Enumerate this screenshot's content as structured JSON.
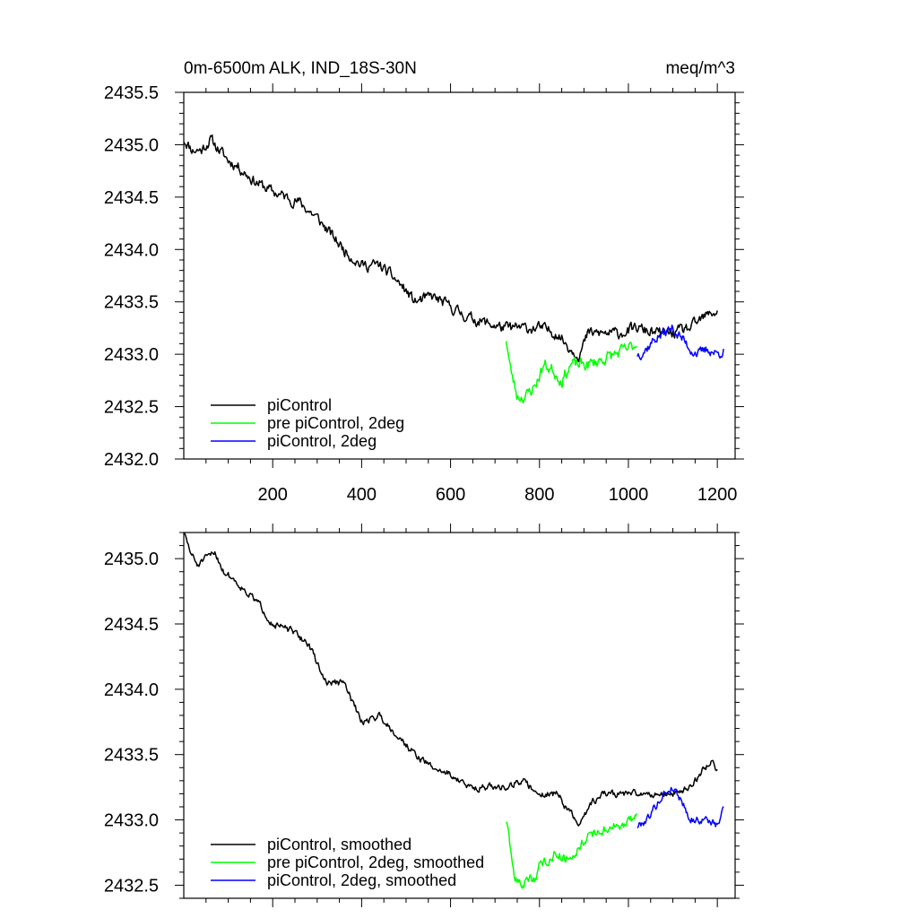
{
  "chart_data": [
    {
      "type": "line",
      "title": "0m-6500m ALK, IND_18S-30N",
      "units": "meq/m^3",
      "xlim": [
        0,
        1240
      ],
      "ylim": [
        2432.0,
        2435.5
      ],
      "x_ticks": [
        200,
        400,
        600,
        800,
        1000,
        1200
      ],
      "x_ticks_labeled": true,
      "y_ticks": [
        2432.0,
        2432.5,
        2433.0,
        2433.5,
        2434.0,
        2434.5,
        2435.0,
        2435.5
      ],
      "y_tick_labels": [
        "2432.0",
        "2432.5",
        "2433.0",
        "2433.5",
        "2434.0",
        "2434.5",
        "2435.0",
        "2435.5"
      ],
      "legend_position": "bottom-left",
      "series": [
        {
          "name": "piControl",
          "color": "#000000",
          "noise": 0.07,
          "seed": 11,
          "x": [
            0,
            20,
            40,
            60,
            80,
            100,
            120,
            160,
            200,
            260,
            300,
            360,
            400,
            440,
            480,
            520,
            560,
            600,
            640,
            680,
            720,
            760,
            800,
            840,
            870,
            890,
            910,
            940,
            980,
            1020,
            1060,
            1100,
            1140,
            1170,
            1190,
            1200
          ],
          "y": [
            2435.05,
            2434.95,
            2434.95,
            2435.05,
            2434.95,
            2434.85,
            2434.8,
            2434.65,
            2434.55,
            2434.45,
            2434.3,
            2434.0,
            2433.85,
            2433.85,
            2433.7,
            2433.5,
            2433.55,
            2433.45,
            2433.35,
            2433.3,
            2433.25,
            2433.25,
            2433.25,
            2433.2,
            2433.05,
            2433.0,
            2433.2,
            2433.2,
            2433.2,
            2433.25,
            2433.2,
            2433.2,
            2433.25,
            2433.35,
            2433.4,
            2433.4
          ]
        },
        {
          "name": "pre piControl, 2deg",
          "color": "#00ff00",
          "noise": 0.08,
          "seed": 23,
          "x": [
            725,
            735,
            750,
            770,
            790,
            810,
            830,
            850,
            870,
            890,
            910,
            940,
            970,
            1000,
            1020
          ],
          "y": [
            2433.15,
            2432.85,
            2432.6,
            2432.6,
            2432.7,
            2432.9,
            2432.85,
            2432.75,
            2432.9,
            2432.9,
            2432.9,
            2432.95,
            2433.0,
            2433.05,
            2433.1
          ]
        },
        {
          "name": "piControl, 2deg",
          "color": "#0000ff",
          "noise": 0.07,
          "seed": 37,
          "x": [
            1020,
            1040,
            1060,
            1080,
            1100,
            1120,
            1140,
            1160,
            1180,
            1200,
            1215
          ],
          "y": [
            2433.0,
            2433.05,
            2433.15,
            2433.2,
            2433.25,
            2433.15,
            2433.05,
            2433.0,
            2433.05,
            2433.0,
            2433.05
          ]
        }
      ]
    },
    {
      "type": "line",
      "title": "",
      "units": "",
      "xlim": [
        0,
        1240
      ],
      "ylim": [
        2432.4,
        2435.2
      ],
      "x_ticks": [
        200,
        400,
        600,
        800,
        1000,
        1200
      ],
      "x_ticks_labeled": false,
      "y_ticks": [
        2432.5,
        2433.0,
        2433.5,
        2434.0,
        2434.5,
        2435.0
      ],
      "y_tick_labels": [
        "2432.5",
        "2433.0",
        "2433.5",
        "2434.0",
        "2434.5",
        "2435.0"
      ],
      "legend_position": "bottom-left",
      "series": [
        {
          "name": "piControl, smoothed",
          "color": "#000000",
          "noise": 0.035,
          "seed": 51,
          "x": [
            0,
            15,
            30,
            50,
            70,
            90,
            110,
            140,
            170,
            200,
            240,
            280,
            320,
            360,
            400,
            440,
            480,
            520,
            560,
            600,
            640,
            680,
            720,
            760,
            800,
            840,
            870,
            890,
            910,
            940,
            980,
            1020,
            1060,
            1100,
            1140,
            1170,
            1190,
            1200
          ],
          "y": [
            2435.2,
            2435.05,
            2434.95,
            2435.0,
            2435.05,
            2434.9,
            2434.85,
            2434.75,
            2434.65,
            2434.5,
            2434.45,
            2434.35,
            2434.05,
            2434.05,
            2433.75,
            2433.8,
            2433.65,
            2433.5,
            2433.4,
            2433.35,
            2433.25,
            2433.25,
            2433.25,
            2433.3,
            2433.2,
            2433.2,
            2433.05,
            2432.95,
            2433.1,
            2433.2,
            2433.2,
            2433.2,
            2433.2,
            2433.2,
            2433.25,
            2433.4,
            2433.45,
            2433.38
          ]
        },
        {
          "name": "pre piControl, 2deg, smoothed",
          "color": "#00ff00",
          "noise": 0.05,
          "seed": 63,
          "x": [
            725,
            735,
            745,
            760,
            775,
            790,
            800,
            820,
            840,
            860,
            880,
            900,
            930,
            960,
            990,
            1020
          ],
          "y": [
            2433.0,
            2432.75,
            2432.55,
            2432.5,
            2432.55,
            2432.55,
            2432.65,
            2432.7,
            2432.75,
            2432.7,
            2432.75,
            2432.85,
            2432.9,
            2432.95,
            2432.95,
            2433.05
          ]
        },
        {
          "name": "piControl, 2deg, smoothed",
          "color": "#0000ff",
          "noise": 0.04,
          "seed": 79,
          "x": [
            1020,
            1040,
            1060,
            1080,
            1100,
            1120,
            1140,
            1160,
            1180,
            1200,
            1215
          ],
          "y": [
            2432.95,
            2433.0,
            2433.1,
            2433.2,
            2433.25,
            2433.15,
            2433.0,
            2433.0,
            2433.0,
            2432.95,
            2433.1
          ]
        }
      ]
    }
  ]
}
